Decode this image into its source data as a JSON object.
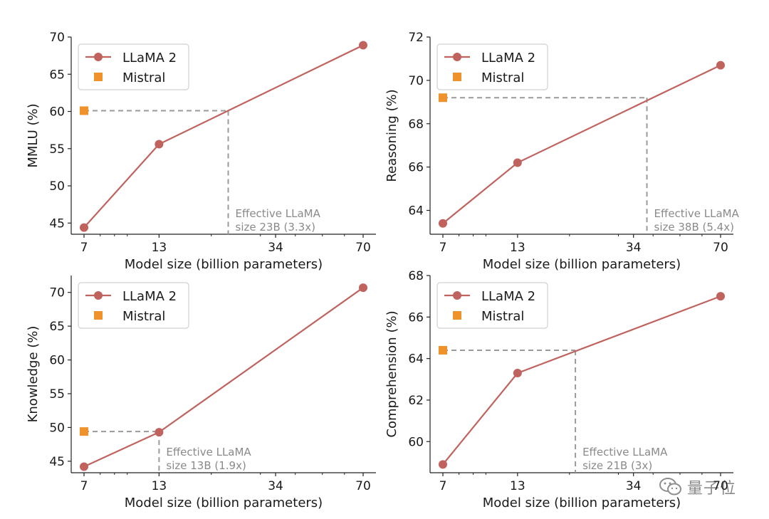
{
  "colors": {
    "llama": "#c0625e",
    "mistral": "#f0922c",
    "dashed": "#9a9a9a",
    "annotation": "#8a8a8a",
    "axis": "#222222"
  },
  "watermark": {
    "text": "量子位",
    "icon": "wechat-icon"
  },
  "chart_data": [
    {
      "type": "line",
      "xscale": "log",
      "xticks": [
        7,
        13,
        34,
        70
      ],
      "xlabel": "Model size (billion parameters)",
      "ylabel": "MMLU (%)",
      "ylim": [
        43.5,
        70
      ],
      "yticks": [
        45,
        50,
        55,
        60,
        65,
        70
      ],
      "series": [
        {
          "name": "LLaMA 2",
          "x": [
            7,
            13,
            70
          ],
          "y": [
            44.4,
            55.6,
            68.9
          ]
        }
      ],
      "mistral": {
        "name": "Mistral",
        "x": 7,
        "y": 60.1
      },
      "effective_x": 23,
      "annotation": [
        "Effective LLaMA",
        "size 23B (3.3x)"
      ],
      "legend_loc": "upper-left"
    },
    {
      "type": "line",
      "xscale": "log",
      "xticks": [
        7,
        13,
        34,
        70
      ],
      "xlabel": "Model size (billion parameters)",
      "ylabel": "Reasoning (%)",
      "ylim": [
        62.9,
        72
      ],
      "yticks": [
        64,
        66,
        68,
        70,
        72
      ],
      "series": [
        {
          "name": "LLaMA 2",
          "x": [
            7,
            13,
            70
          ],
          "y": [
            63.4,
            66.2,
            70.7
          ]
        }
      ],
      "mistral": {
        "name": "Mistral",
        "x": 7,
        "y": 69.2
      },
      "effective_x": 38,
      "annotation": [
        "Effective LLaMA",
        "size 38B (5.4x)"
      ],
      "legend_loc": "upper-left"
    },
    {
      "type": "line",
      "xscale": "log",
      "xticks": [
        7,
        13,
        34,
        70
      ],
      "xlabel": "Model size (billion parameters)",
      "ylabel": "Knowledge (%)",
      "ylim": [
        43.3,
        72.5
      ],
      "yticks": [
        45,
        50,
        55,
        60,
        65,
        70
      ],
      "series": [
        {
          "name": "LLaMA 2",
          "x": [
            7,
            13,
            70
          ],
          "y": [
            44.2,
            49.3,
            70.7
          ]
        }
      ],
      "mistral": {
        "name": "Mistral",
        "x": 7,
        "y": 49.4
      },
      "effective_x": 13,
      "annotation": [
        "Effective LLaMA",
        "size 13B (1.9x)"
      ],
      "legend_loc": "upper-left"
    },
    {
      "type": "line",
      "xscale": "log",
      "xticks": [
        7,
        13,
        34,
        70
      ],
      "xlabel": "Model size (billion parameters)",
      "ylabel": "Comprehension (%)",
      "ylim": [
        58.5,
        68
      ],
      "yticks": [
        60,
        62,
        64,
        66,
        68
      ],
      "series": [
        {
          "name": "LLaMA 2",
          "x": [
            7,
            13,
            70
          ],
          "y": [
            58.9,
            63.3,
            67.0
          ]
        }
      ],
      "mistral": {
        "name": "Mistral",
        "x": 7,
        "y": 64.4
      },
      "effective_x": 21,
      "annotation": [
        "Effective LLaMA",
        "size 21B (3x)"
      ],
      "legend_loc": "upper-left"
    }
  ]
}
